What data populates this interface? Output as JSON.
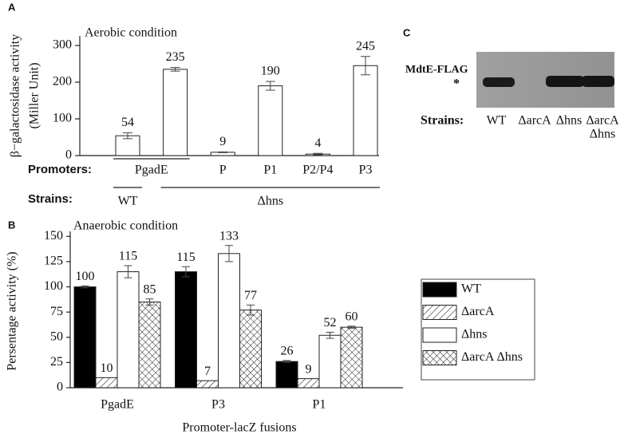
{
  "chart_data": [
    {
      "type": "bar",
      "panel_label": "A",
      "annotation": "Aerobic condition",
      "y_label": [
        "β−galactosidase activity",
        "(Miller Unit)"
      ],
      "ylim": [
        0,
        326
      ],
      "yticks": [
        0,
        100,
        200,
        300
      ],
      "row_labels": [
        "Promoters:",
        "Strains:"
      ],
      "categories": [
        "PgadE",
        null,
        "P",
        "P1",
        "P2/P4",
        "P3"
      ],
      "strains": [
        "WT",
        "Δhns",
        null,
        null,
        null,
        null
      ],
      "values": [
        54,
        235,
        9,
        190,
        4,
        245
      ],
      "errors": [
        8,
        5,
        1,
        12,
        2,
        25
      ],
      "color": "#ffffff"
    },
    {
      "type": "grouped_bar",
      "panel_label": "B",
      "annotation": "Anaerobic condition",
      "y_label": "Persentage activity (%)",
      "x_label": "Promoter-lacZ fusions",
      "ylim": [
        0,
        155
      ],
      "yticks": [
        0,
        25,
        50,
        75,
        100,
        125,
        150
      ],
      "categories": [
        "PgadE",
        "P3",
        "P1"
      ],
      "legend": "right",
      "series": [
        {
          "name": "WT",
          "color": "#000000",
          "pattern": "solid",
          "values": [
            100,
            115,
            26
          ],
          "errors": [
            1,
            5,
            1
          ]
        },
        {
          "name": "ΔarcA",
          "color": "#ffffff",
          "pattern": "diagonal",
          "values": [
            10,
            7,
            9
          ]
        },
        {
          "name": "Δhns",
          "color": "#ffffff",
          "pattern": "solid",
          "values": [
            115,
            133,
            52
          ],
          "errors": [
            6,
            8,
            3
          ]
        },
        {
          "name": "ΔarcA Δhns",
          "color": "#ffffff",
          "pattern": "crosshatch",
          "values": [
            85,
            77,
            60
          ],
          "errors": [
            3,
            5,
            1
          ]
        }
      ]
    }
  ],
  "blot": {
    "panel_label": "C",
    "band_label": "MdtE-FLAG",
    "marker": "*",
    "row_label": "Strains:",
    "lanes": [
      [
        "WT"
      ],
      [
        "ΔarcA"
      ],
      [
        "Δhns"
      ],
      [
        "ΔarcA",
        "Δhns"
      ]
    ]
  }
}
